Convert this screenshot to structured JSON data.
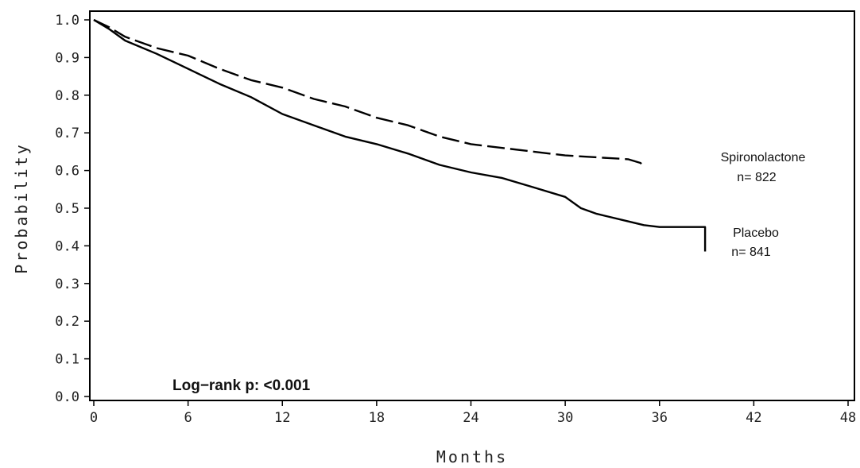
{
  "chart_data": {
    "type": "line",
    "title": "",
    "xlabel": "Months",
    "ylabel": "Probability",
    "xlim": [
      0,
      48
    ],
    "ylim": [
      0,
      1
    ],
    "x_ticks": [
      "0",
      "6",
      "12",
      "18",
      "24",
      "30",
      "36",
      "42",
      "48"
    ],
    "y_ticks": [
      "0.0",
      "0.1",
      "0.2",
      "0.3",
      "0.4",
      "0.5",
      "0.6",
      "0.7",
      "0.8",
      "0.9",
      "1.0"
    ],
    "grid": false,
    "series": [
      {
        "name": "Spironolactone",
        "n_label": "n= 822",
        "line_style": "dashed",
        "points": [
          [
            0,
            1.0
          ],
          [
            1,
            0.98
          ],
          [
            2,
            0.955
          ],
          [
            4,
            0.925
          ],
          [
            6,
            0.905
          ],
          [
            8,
            0.87
          ],
          [
            10,
            0.84
          ],
          [
            12,
            0.82
          ],
          [
            14,
            0.79
          ],
          [
            16,
            0.77
          ],
          [
            18,
            0.74
          ],
          [
            20,
            0.72
          ],
          [
            22,
            0.69
          ],
          [
            24,
            0.67
          ],
          [
            26,
            0.66
          ],
          [
            28,
            0.65
          ],
          [
            30,
            0.64
          ],
          [
            32,
            0.635
          ],
          [
            34,
            0.63
          ],
          [
            34.8,
            0.62
          ],
          [
            35,
            0.605
          ]
        ]
      },
      {
        "name": "Placebo",
        "n_label": "n= 841",
        "line_style": "solid",
        "points": [
          [
            0,
            1.0
          ],
          [
            1,
            0.975
          ],
          [
            2,
            0.945
          ],
          [
            4,
            0.91
          ],
          [
            6,
            0.87
          ],
          [
            8,
            0.83
          ],
          [
            10,
            0.795
          ],
          [
            12,
            0.75
          ],
          [
            14,
            0.72
          ],
          [
            16,
            0.69
          ],
          [
            18,
            0.67
          ],
          [
            20,
            0.645
          ],
          [
            22,
            0.615
          ],
          [
            24,
            0.595
          ],
          [
            26,
            0.58
          ],
          [
            28,
            0.555
          ],
          [
            30,
            0.53
          ],
          [
            31,
            0.5
          ],
          [
            32,
            0.485
          ],
          [
            34,
            0.465
          ],
          [
            35,
            0.455
          ],
          [
            36,
            0.45
          ],
          [
            37.5,
            0.45
          ],
          [
            38.9,
            0.45
          ],
          [
            38.9,
            0.385
          ]
        ]
      }
    ],
    "annotation": "Log−rank p: <0.001"
  }
}
